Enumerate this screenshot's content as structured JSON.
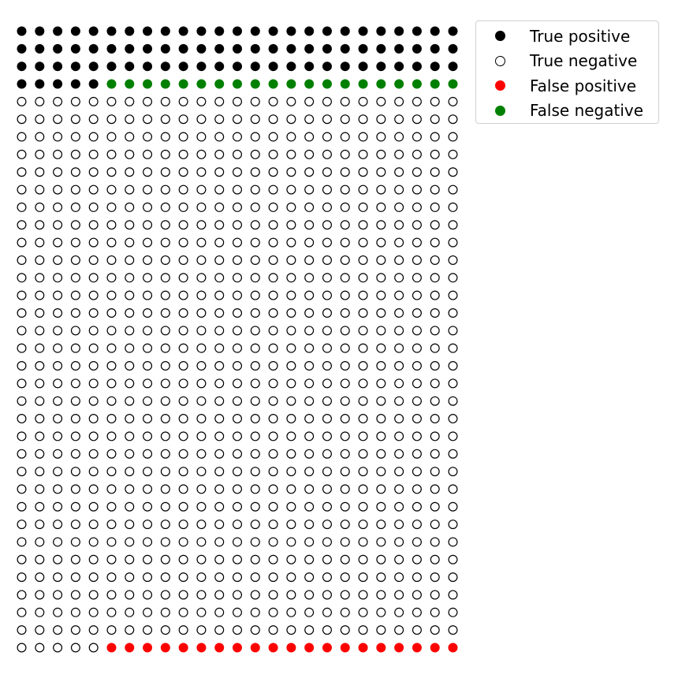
{
  "chart_data": {
    "type": "scatter",
    "title": "",
    "xlabel": "",
    "ylabel": "",
    "grid": false,
    "axes_visible": false,
    "legend_position": "top-right-outside",
    "columns": 25,
    "rows": 36,
    "total_points": 900,
    "fill_order": "row-major from top-left",
    "segments": [
      {
        "label": "True positive",
        "count": 80
      },
      {
        "label": "False negative",
        "count": 20
      },
      {
        "label": "True negative",
        "count": 780
      },
      {
        "label": "False positive",
        "count": 20
      }
    ],
    "series": [
      {
        "name": "True positive",
        "count": 80,
        "color": "#000000",
        "style": "filled"
      },
      {
        "name": "True negative",
        "count": 780,
        "color": "#000000",
        "style": "hollow"
      },
      {
        "name": "False positive",
        "count": 20,
        "color": "#ff0000",
        "style": "filled"
      },
      {
        "name": "False negative",
        "count": 20,
        "color": "#008000",
        "style": "filled"
      }
    ]
  },
  "legend": {
    "items": [
      {
        "label": "True positive",
        "color": "#000000",
        "style": "filled"
      },
      {
        "label": "True negative",
        "color": "#000000",
        "style": "hollow"
      },
      {
        "label": "False positive",
        "color": "#ff0000",
        "style": "filled"
      },
      {
        "label": "False negative",
        "color": "#008000",
        "style": "filled"
      }
    ]
  }
}
